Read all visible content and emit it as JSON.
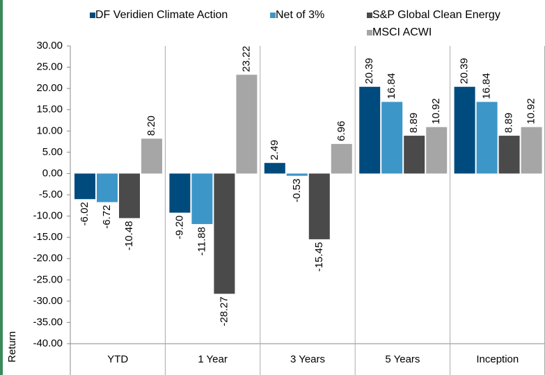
{
  "chart_data": {
    "type": "bar",
    "y_label": "Return",
    "categories": [
      "YTD",
      "1 Year",
      "3 Years",
      "5 Years",
      "Inception"
    ],
    "series": [
      {
        "name": "DF Veridien Climate Action",
        "color": "#004b7e",
        "values": [
          -6.02,
          -9.2,
          2.49,
          20.39,
          20.39
        ],
        "value_labels": [
          "-6.02",
          "-9.20",
          "2.49",
          "20.39",
          "20.39"
        ]
      },
      {
        "name": "Net of 3%",
        "color": "#3d96c8",
        "values": [
          -6.72,
          -11.88,
          -0.53,
          16.84,
          16.84
        ],
        "value_labels": [
          "-6.72",
          "-11.88",
          "-0.53",
          "16.84",
          "16.84"
        ]
      },
      {
        "name": "S&P Global Clean Energy",
        "color": "#4a4a4a",
        "values": [
          -10.48,
          -28.27,
          -15.45,
          8.89,
          8.89
        ],
        "value_labels": [
          "-10.48",
          "-28.27",
          "-15.45",
          "8.89",
          "8.89"
        ]
      },
      {
        "name": "MSCI ACWI",
        "color": "#a6a6a6",
        "values": [
          8.2,
          23.22,
          6.96,
          10.92,
          10.92
        ],
        "value_labels": [
          "8.20",
          "23.22",
          "6.96",
          "10.92",
          "10.92"
        ]
      }
    ],
    "ylim": [
      -40,
      30
    ],
    "yticks": [
      {
        "value": 30,
        "label": "30.00"
      },
      {
        "value": 25,
        "label": "25.00"
      },
      {
        "value": 20,
        "label": "20.00"
      },
      {
        "value": 15,
        "label": "15.00"
      },
      {
        "value": 10,
        "label": "10.00"
      },
      {
        "value": 5,
        "label": "5.00"
      },
      {
        "value": 0,
        "label": "0.00"
      },
      {
        "value": -5,
        "label": "-5.00"
      },
      {
        "value": -10,
        "label": "-10.00"
      },
      {
        "value": -15,
        "label": "-15.00"
      },
      {
        "value": -20,
        "label": "-20.00"
      },
      {
        "value": -25,
        "label": "-25.00"
      },
      {
        "value": -30,
        "label": "-30.00"
      },
      {
        "value": -35,
        "label": "-35.00"
      },
      {
        "value": -40,
        "label": "-40.00"
      }
    ],
    "legend": "top"
  }
}
